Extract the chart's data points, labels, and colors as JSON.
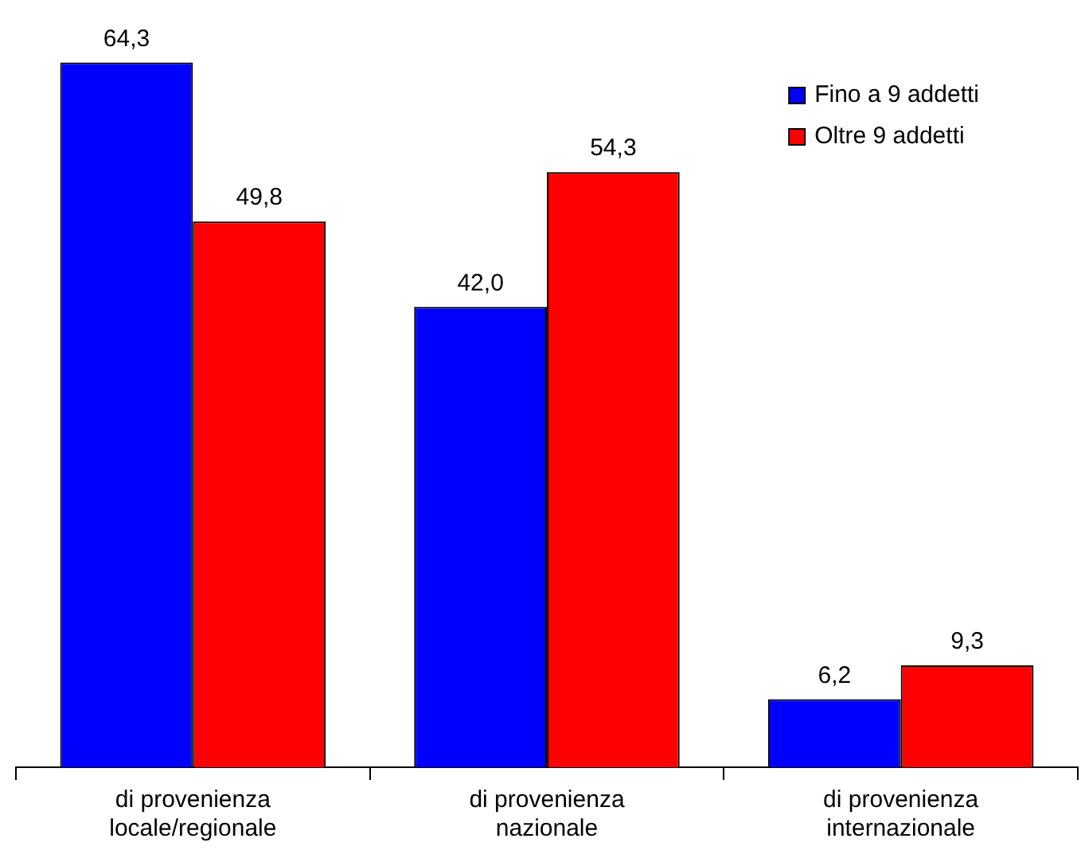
{
  "chart_data": {
    "type": "bar",
    "categories": [
      "di provenienza\nlocale/regionale",
      "di provenienza\nnazionale",
      "di provenienza\ninternazionale"
    ],
    "series": [
      {
        "name": "Fino a 9 addetti",
        "color": "#0000ff",
        "values": [
          64.3,
          42.0,
          6.2
        ],
        "value_labels": [
          "64,3",
          "42,0",
          "6,2"
        ]
      },
      {
        "name": "Oltre 9 addetti",
        "color": "#ff0000",
        "values": [
          49.8,
          54.3,
          9.3
        ],
        "value_labels": [
          "49,8",
          "54,3",
          "9,3"
        ]
      }
    ],
    "legend": "top right"
  }
}
